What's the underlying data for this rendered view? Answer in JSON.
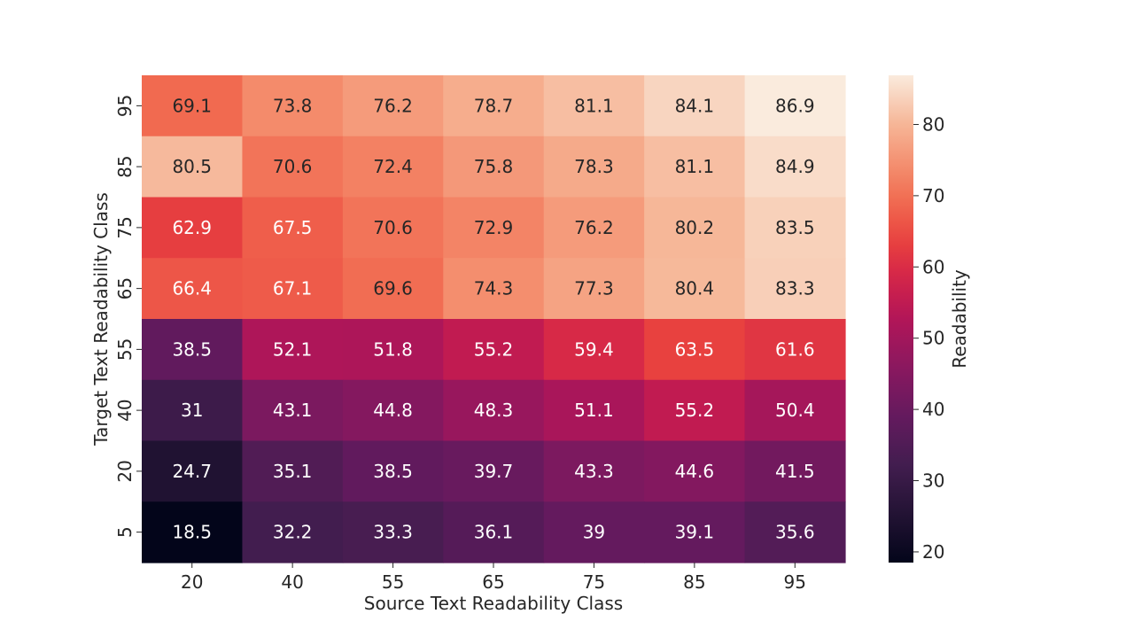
{
  "chart_data": {
    "type": "heatmap",
    "xlabel": "Source Text Readability Class",
    "ylabel": "Target Text Readability Class",
    "x_categories": [
      "20",
      "40",
      "55",
      "65",
      "75",
      "85",
      "95"
    ],
    "y_categories": [
      "95",
      "85",
      "75",
      "65",
      "55",
      "40",
      "20",
      "5"
    ],
    "values": [
      [
        69.1,
        73.8,
        76.2,
        78.7,
        81.1,
        84.1,
        86.9
      ],
      [
        80.5,
        70.6,
        72.4,
        75.8,
        78.3,
        81.1,
        84.9
      ],
      [
        62.9,
        67.5,
        70.6,
        72.9,
        76.2,
        80.2,
        83.5
      ],
      [
        66.4,
        67.1,
        69.6,
        74.3,
        77.3,
        80.4,
        83.3
      ],
      [
        38.5,
        52.1,
        51.8,
        55.2,
        59.4,
        63.5,
        61.6
      ],
      [
        31,
        43.1,
        44.8,
        48.3,
        51.1,
        55.2,
        50.4
      ],
      [
        24.7,
        35.1,
        38.5,
        39.7,
        43.3,
        44.6,
        41.5
      ],
      [
        18.5,
        32.2,
        33.3,
        36.1,
        39,
        39.1,
        35.6
      ]
    ],
    "colorbar": {
      "label": "Readability",
      "ticks": [
        20,
        30,
        40,
        50,
        60,
        70,
        80
      ],
      "range": [
        18.5,
        86.9
      ],
      "colormap": "rocket"
    }
  }
}
